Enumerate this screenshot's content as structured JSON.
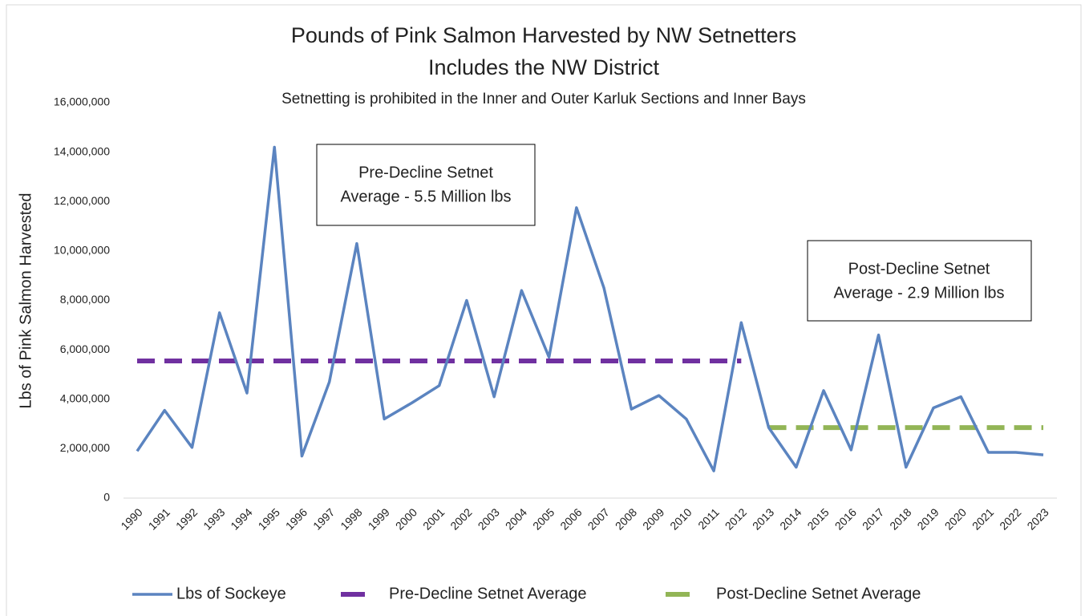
{
  "chart_data": {
    "type": "line",
    "title": [
      "Pounds of Pink Salmon Harvested by NW Setnetters",
      "Includes the NW District"
    ],
    "subtitle": "Setnetting is prohibited in the Inner and Outer Karluk Sections and Inner Bays",
    "ylabel": "Lbs of Pink Salmon Harvested",
    "categories": [
      "1990",
      "1991",
      "1992",
      "1993",
      "1994",
      "1995",
      "1996",
      "1997",
      "1998",
      "1999",
      "2000",
      "2001",
      "2002",
      "2003",
      "2004",
      "2005",
      "2006",
      "2007",
      "2008",
      "2009",
      "2010",
      "2011",
      "2012",
      "2013",
      "2014",
      "2015",
      "2016",
      "2017",
      "2018",
      "2019",
      "2020",
      "2021",
      "2022",
      "2023"
    ],
    "series": [
      {
        "name": "Lbs of Sockeye",
        "color": "#5b84c0",
        "dashed": false,
        "values": [
          1900000,
          3550000,
          2050000,
          7500000,
          4250000,
          14200000,
          1700000,
          4700000,
          10300000,
          3200000,
          3850000,
          4550000,
          8000000,
          4100000,
          8400000,
          5700000,
          11750000,
          8500000,
          3600000,
          4150000,
          3200000,
          1100000,
          7100000,
          2850000,
          1250000,
          4350000,
          1950000,
          6600000,
          1250000,
          3650000,
          4100000,
          1850000,
          1850000,
          1750000
        ]
      },
      {
        "name": "Pre-Decline Setnet Average",
        "color": "#7030a0",
        "dashed": true,
        "values": [
          5550000,
          5550000,
          5550000,
          5550000,
          5550000,
          5550000,
          5550000,
          5550000,
          5550000,
          5550000,
          5550000,
          5550000,
          5550000,
          5550000,
          5550000,
          5550000,
          5550000,
          5550000,
          5550000,
          5550000,
          5550000,
          5550000,
          5550000,
          null,
          null,
          null,
          null,
          null,
          null,
          null,
          null,
          null,
          null,
          null
        ]
      },
      {
        "name": "Post-Decline Setnet Average",
        "color": "#92b556",
        "dashed": true,
        "values": [
          null,
          null,
          null,
          null,
          null,
          null,
          null,
          null,
          null,
          null,
          null,
          null,
          null,
          null,
          null,
          null,
          null,
          null,
          null,
          null,
          null,
          null,
          null,
          2850000,
          2850000,
          2850000,
          2850000,
          2850000,
          2850000,
          2850000,
          2850000,
          2850000,
          2850000,
          2850000
        ]
      }
    ],
    "ylim": [
      0,
      16000000
    ],
    "yticks": [
      0,
      {
        "value": 2000000,
        "label": "2,000,000"
      },
      {
        "value": 4000000,
        "label": "4,000,000"
      },
      {
        "value": 6000000,
        "label": "6,000,000"
      },
      {
        "value": 8000000,
        "label": "8,000,000"
      },
      {
        "value": 10000000,
        "label": "10,000,000"
      },
      {
        "value": 12000000,
        "label": "12,000,000"
      },
      {
        "value": 14000000,
        "label": "14,000,000"
      },
      {
        "value": 16000000,
        "label": "16,000,000"
      }
    ],
    "grid": false,
    "legend": "bottom",
    "annotations": [
      {
        "lines": [
          "Pre-Decline Setnet",
          "Average - 5.5 Million lbs"
        ]
      },
      {
        "lines": [
          "Post-Decline Setnet",
          "Average - 2.9 Million lbs"
        ]
      }
    ]
  }
}
